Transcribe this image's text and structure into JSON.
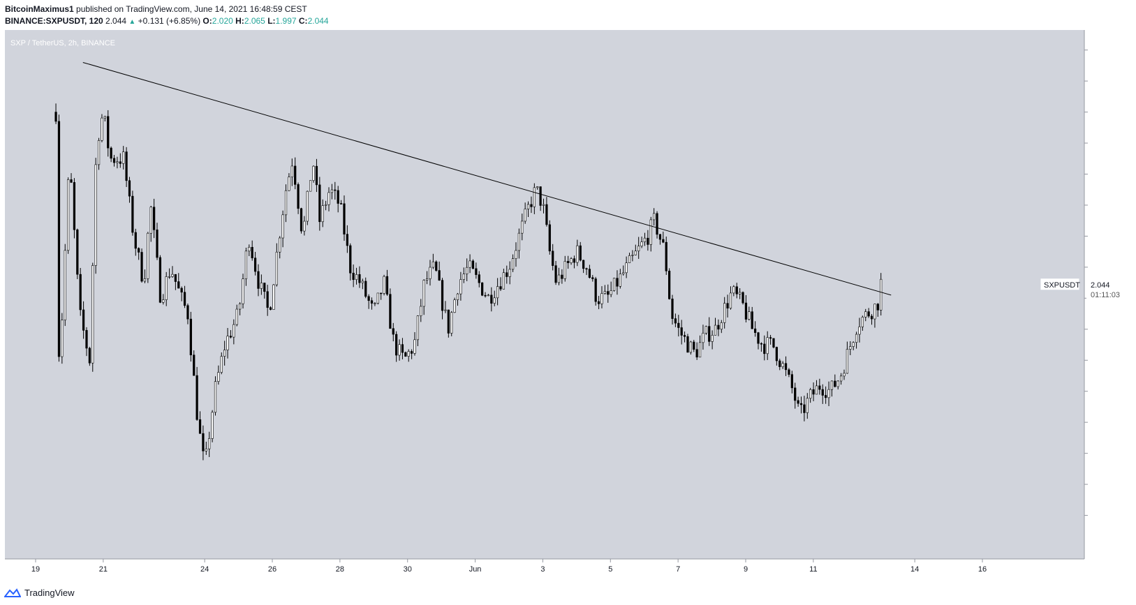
{
  "header": {
    "author": "BitcoinMaximus1",
    "published_text": "published on TradingView.com, June 14, 2021 16:48:59 CEST",
    "symbol_line": "BINANCE:SXPUSDT, 120",
    "last": "2.044",
    "change": "+0.131 (+6.85%)",
    "o_label": "O:",
    "o_value": "2.020",
    "h_label": "H:",
    "h_value": "2.065",
    "l_label": "L:",
    "l_value": "1.997",
    "c_label": "C:",
    "c_value": "2.044"
  },
  "chart_title": "SXP / TetherUS, 2h, BINANCE",
  "currency_label": "USDT",
  "price_tag": {
    "symbol": "SXPUSDT",
    "price": "2.044",
    "countdown": "01:11:03"
  },
  "footer": {
    "brand": "TradingView"
  },
  "colors": {
    "background": "#d1d4dc",
    "candle": "#000000",
    "axis_text": "#131722"
  },
  "chart_data": {
    "type": "candlestick",
    "title": "SXP / TetherUS, 2h, BINANCE",
    "y_axis": {
      "ticks": [
        "2.800",
        "2.700",
        "2.600",
        "2.500",
        "2.400",
        "2.300",
        "2.200",
        "2.100",
        "2.000",
        "1.900",
        "1.800",
        "1.700",
        "1.600",
        "1.500",
        "1.400",
        "1.300"
      ],
      "range": [
        1.2,
        2.86
      ]
    },
    "x_axis": {
      "ticks": [
        {
          "label": "19",
          "day": 19
        },
        {
          "label": "21",
          "day": 21
        },
        {
          "label": "24",
          "day": 24
        },
        {
          "label": "26",
          "day": 26
        },
        {
          "label": "28",
          "day": 28
        },
        {
          "label": "30",
          "day": 30
        },
        {
          "label": "Jun",
          "day": 32
        },
        {
          "label": "3",
          "day": 34
        },
        {
          "label": "5",
          "day": 36
        },
        {
          "label": "7",
          "day": 38
        },
        {
          "label": "9",
          "day": 40
        },
        {
          "label": "11",
          "day": 42
        },
        {
          "label": "14",
          "day": 45
        },
        {
          "label": "16",
          "day": 47
        }
      ]
    },
    "path": [
      [
        19.6,
        2.6
      ],
      [
        19.7,
        1.75
      ],
      [
        20.0,
        2.45
      ],
      [
        20.3,
        1.95
      ],
      [
        20.6,
        1.8
      ],
      [
        20.8,
        2.5
      ],
      [
        21.0,
        2.6
      ],
      [
        21.2,
        2.45
      ],
      [
        21.6,
        2.45
      ],
      [
        21.9,
        2.2
      ],
      [
        22.2,
        2.05
      ],
      [
        22.4,
        2.3
      ],
      [
        22.7,
        2.0
      ],
      [
        23.0,
        2.1
      ],
      [
        23.3,
        2.0
      ],
      [
        23.5,
        1.95
      ],
      [
        23.8,
        1.6
      ],
      [
        24.0,
        1.45
      ],
      [
        24.3,
        1.7
      ],
      [
        24.6,
        1.85
      ],
      [
        25.0,
        1.95
      ],
      [
        25.3,
        2.2
      ],
      [
        25.6,
        2.05
      ],
      [
        25.9,
        1.95
      ],
      [
        26.2,
        2.2
      ],
      [
        26.4,
        2.35
      ],
      [
        26.6,
        2.45
      ],
      [
        26.9,
        2.2
      ],
      [
        27.2,
        2.45
      ],
      [
        27.4,
        2.25
      ],
      [
        27.7,
        2.35
      ],
      [
        28.0,
        2.3
      ],
      [
        28.3,
        2.1
      ],
      [
        28.6,
        2.05
      ],
      [
        29.0,
        1.95
      ],
      [
        29.3,
        2.05
      ],
      [
        29.6,
        1.85
      ],
      [
        29.9,
        1.8
      ],
      [
        30.2,
        1.85
      ],
      [
        30.5,
        2.05
      ],
      [
        30.8,
        2.1
      ],
      [
        31.0,
        2.0
      ],
      [
        31.2,
        1.9
      ],
      [
        31.5,
        2.05
      ],
      [
        31.8,
        2.1
      ],
      [
        32.1,
        2.05
      ],
      [
        32.4,
        2.0
      ],
      [
        32.7,
        2.05
      ],
      [
        33.0,
        2.1
      ],
      [
        33.3,
        2.2
      ],
      [
        33.6,
        2.3
      ],
      [
        33.8,
        2.35
      ],
      [
        34.0,
        2.3
      ],
      [
        34.2,
        2.15
      ],
      [
        34.4,
        2.05
      ],
      [
        34.7,
        2.1
      ],
      [
        35.0,
        2.15
      ],
      [
        35.3,
        2.1
      ],
      [
        35.6,
        2.0
      ],
      [
        35.9,
        2.0
      ],
      [
        36.2,
        2.05
      ],
      [
        36.5,
        2.1
      ],
      [
        36.8,
        2.15
      ],
      [
        37.1,
        2.2
      ],
      [
        37.3,
        2.25
      ],
      [
        37.6,
        2.15
      ],
      [
        37.8,
        1.95
      ],
      [
        38.0,
        1.9
      ],
      [
        38.3,
        1.85
      ],
      [
        38.5,
        1.82
      ],
      [
        38.8,
        1.88
      ],
      [
        39.1,
        1.9
      ],
      [
        39.3,
        1.95
      ],
      [
        39.6,
        2.02
      ],
      [
        39.9,
        1.98
      ],
      [
        40.2,
        1.9
      ],
      [
        40.5,
        1.85
      ],
      [
        40.8,
        1.85
      ],
      [
        41.1,
        1.78
      ],
      [
        41.4,
        1.7
      ],
      [
        41.6,
        1.62
      ],
      [
        41.9,
        1.68
      ],
      [
        42.2,
        1.72
      ],
      [
        42.5,
        1.7
      ],
      [
        42.8,
        1.75
      ],
      [
        43.1,
        1.85
      ],
      [
        43.3,
        1.92
      ],
      [
        43.6,
        1.95
      ],
      [
        43.9,
        1.98
      ],
      [
        44.0,
        2.05
      ]
    ],
    "points": 270,
    "trendline": {
      "start": [
        20.4,
        2.76
      ],
      "end": [
        44.3,
        2.01
      ]
    },
    "last_price": 2.044
  }
}
